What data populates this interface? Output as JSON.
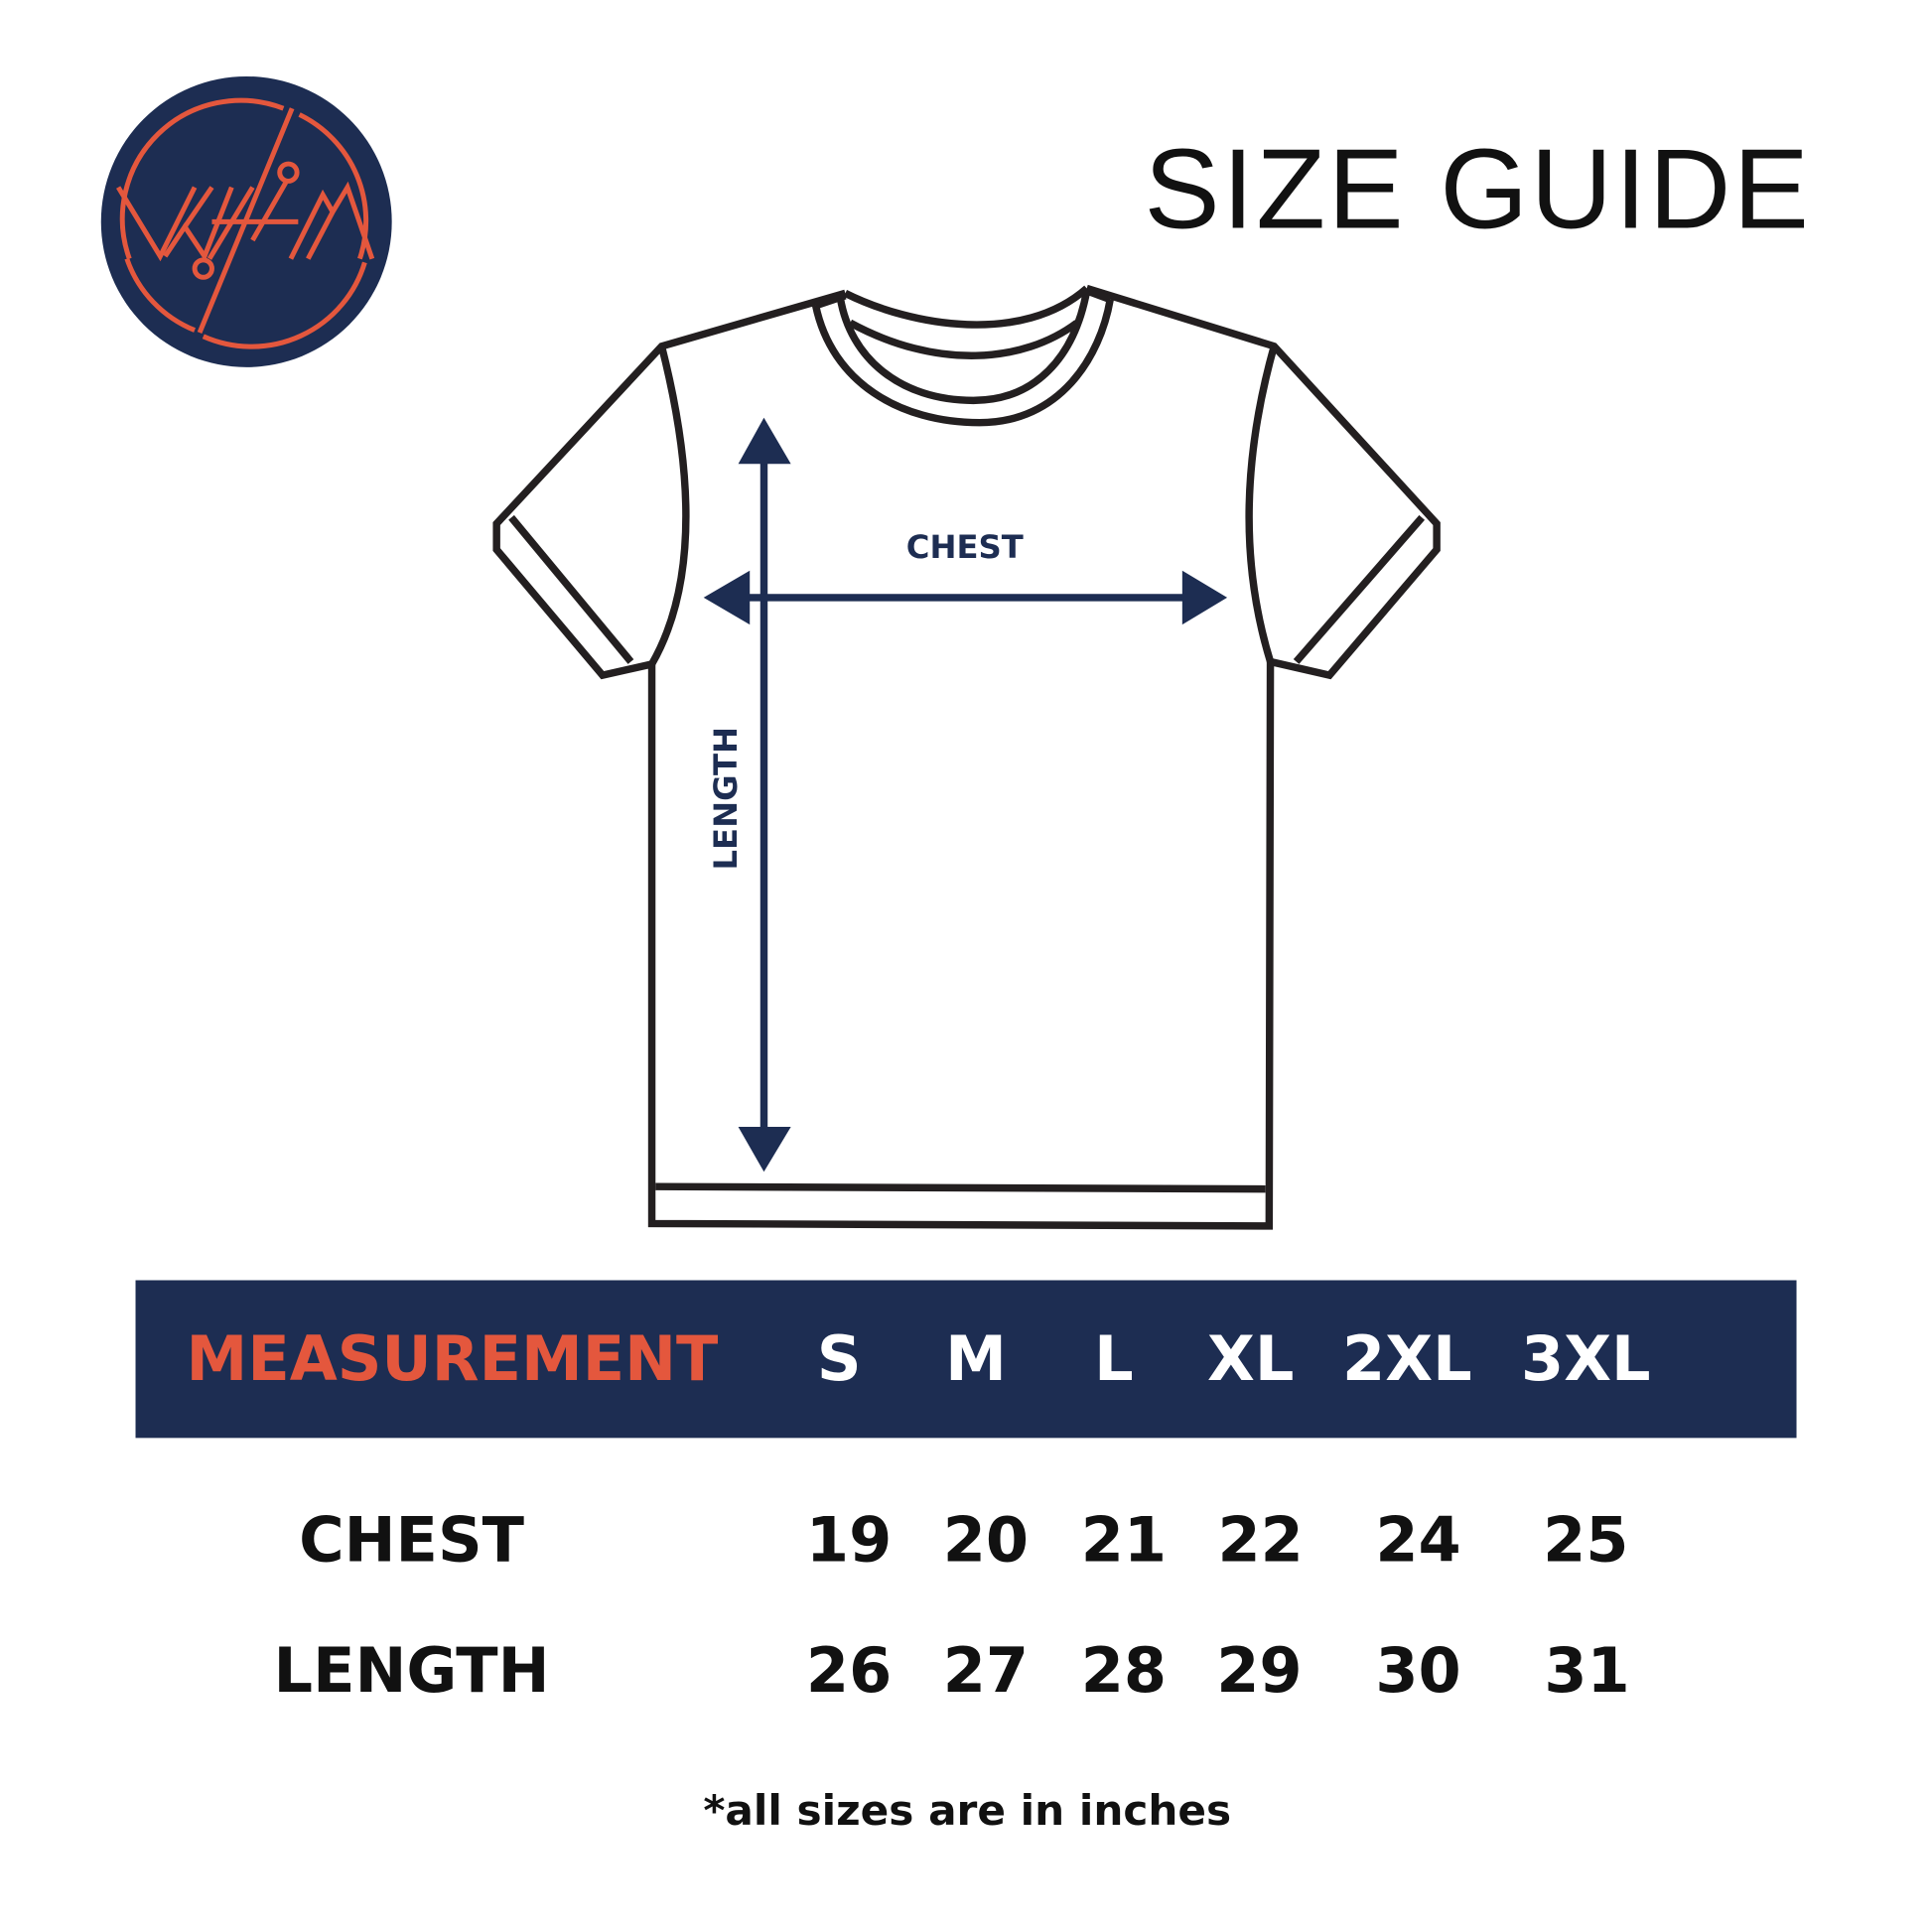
{
  "brand": {
    "logo_text": "WHIM",
    "colors": {
      "navy": "#1d2d52",
      "orange": "#e4573d"
    }
  },
  "title": "SIZE GUIDE",
  "diagram": {
    "chest_label": "CHEST",
    "length_label": "LENGTH"
  },
  "table": {
    "header": {
      "measurement": "MEASUREMENT",
      "sizes": [
        "S",
        "M",
        "L",
        "XL",
        "2XL",
        "3XL"
      ]
    },
    "rows": [
      {
        "label": "CHEST",
        "values": [
          "19",
          "20",
          "21",
          "22",
          "24",
          "25"
        ]
      },
      {
        "label": "LENGTH",
        "values": [
          "26",
          "27",
          "28",
          "29",
          "30",
          "31"
        ]
      }
    ]
  },
  "footnote": "*all sizes are in inches"
}
